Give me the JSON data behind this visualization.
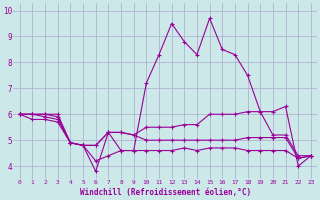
{
  "xlabel": "Windchill (Refroidissement éolien,°C)",
  "background_color": "#cce8e8",
  "grid_color": "#aaaacc",
  "line_color": "#990099",
  "xlim": [
    -0.5,
    23.5
  ],
  "ylim": [
    3.5,
    10.3
  ],
  "xticks": [
    0,
    1,
    2,
    3,
    4,
    5,
    6,
    7,
    8,
    9,
    10,
    11,
    12,
    13,
    14,
    15,
    16,
    17,
    18,
    19,
    20,
    21,
    22,
    23
  ],
  "yticks": [
    4,
    5,
    6,
    7,
    8,
    9,
    10
  ],
  "series": [
    [
      6.0,
      6.0,
      6.0,
      6.0,
      4.9,
      4.8,
      4.8,
      5.3,
      4.6,
      4.6,
      7.2,
      8.3,
      9.5,
      8.8,
      8.3,
      9.7,
      8.5,
      8.3,
      7.5,
      6.1,
      6.1,
      6.3,
      4.0,
      4.4
    ],
    [
      6.0,
      6.0,
      6.0,
      5.9,
      4.9,
      4.8,
      4.8,
      5.3,
      5.3,
      5.2,
      5.5,
      5.5,
      5.5,
      5.6,
      5.6,
      6.0,
      6.0,
      6.0,
      6.1,
      6.1,
      5.2,
      5.2,
      4.4,
      4.4
    ],
    [
      6.0,
      6.0,
      5.9,
      5.8,
      4.9,
      4.8,
      3.8,
      5.3,
      5.3,
      5.2,
      5.0,
      5.0,
      5.0,
      5.0,
      5.0,
      5.0,
      5.0,
      5.0,
      5.1,
      5.1,
      5.1,
      5.1,
      4.3,
      4.4
    ],
    [
      6.0,
      5.8,
      5.8,
      5.7,
      4.9,
      4.8,
      4.2,
      4.4,
      4.6,
      4.6,
      4.6,
      4.6,
      4.6,
      4.7,
      4.6,
      4.7,
      4.7,
      4.7,
      4.6,
      4.6,
      4.6,
      4.6,
      4.3,
      4.4
    ]
  ]
}
